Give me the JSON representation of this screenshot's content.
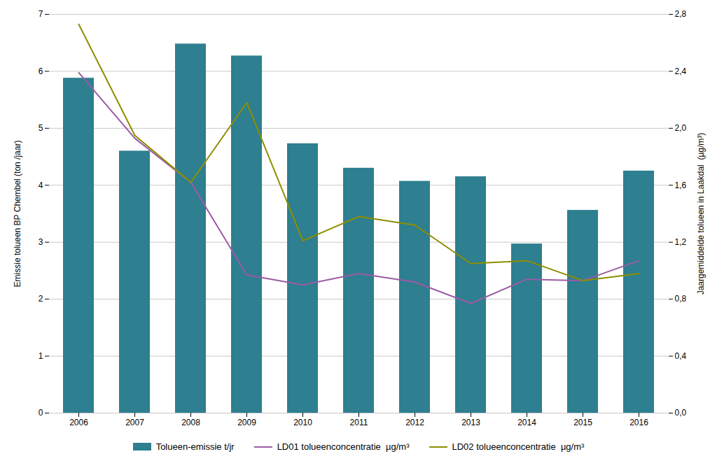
{
  "chart_data": {
    "type": "bar",
    "categories": [
      "2006",
      "2007",
      "2008",
      "2009",
      "2010",
      "2011",
      "2012",
      "2013",
      "2014",
      "2015",
      "2016"
    ],
    "series": [
      {
        "name": "Tolueen-emissie t/jr",
        "type": "bar",
        "color": "#2E7F8F",
        "values": [
          5.88,
          4.6,
          6.48,
          6.27,
          4.73,
          4.3,
          4.07,
          4.15,
          2.97,
          3.56,
          4.25
        ]
      },
      {
        "name": "LD01 tolueenconcentratie  µg/m³",
        "type": "line",
        "axis": "y2",
        "color": "#9B5BA5",
        "values": [
          2.39,
          1.93,
          1.62,
          0.97,
          0.9,
          0.98,
          0.92,
          0.77,
          0.94,
          0.93,
          1.07
        ]
      },
      {
        "name": "LD02 tolueenconcentratie  µg/m³",
        "type": "line",
        "axis": "y2",
        "color": "#8E8E00",
        "values": [
          2.73,
          1.95,
          1.62,
          2.18,
          1.21,
          1.38,
          1.32,
          1.05,
          1.07,
          0.93,
          0.98
        ]
      }
    ],
    "ylabel": "Emissie tolueen BP Chembel (ton /jaar)",
    "y2label": "Jaargemiddelde tolueen in Laakdal  (µg/m³)",
    "ylim": [
      0,
      7
    ],
    "yticks": [
      0,
      1,
      2,
      3,
      4,
      5,
      6,
      7
    ],
    "y2lim": [
      0.0,
      2.8
    ],
    "y2ticks": [
      {
        "value": 0.0,
        "label": "0,0"
      },
      {
        "value": 0.4,
        "label": "0,4"
      },
      {
        "value": 0.8,
        "label": "0,8"
      },
      {
        "value": 1.2,
        "label": "1,2"
      },
      {
        "value": 1.6,
        "label": "1,6"
      },
      {
        "value": 2.0,
        "label": "2,0"
      },
      {
        "value": 2.4,
        "label": "2,4"
      },
      {
        "value": 2.8,
        "label": "2,8"
      }
    ],
    "grid": true,
    "legend": "bottom"
  }
}
